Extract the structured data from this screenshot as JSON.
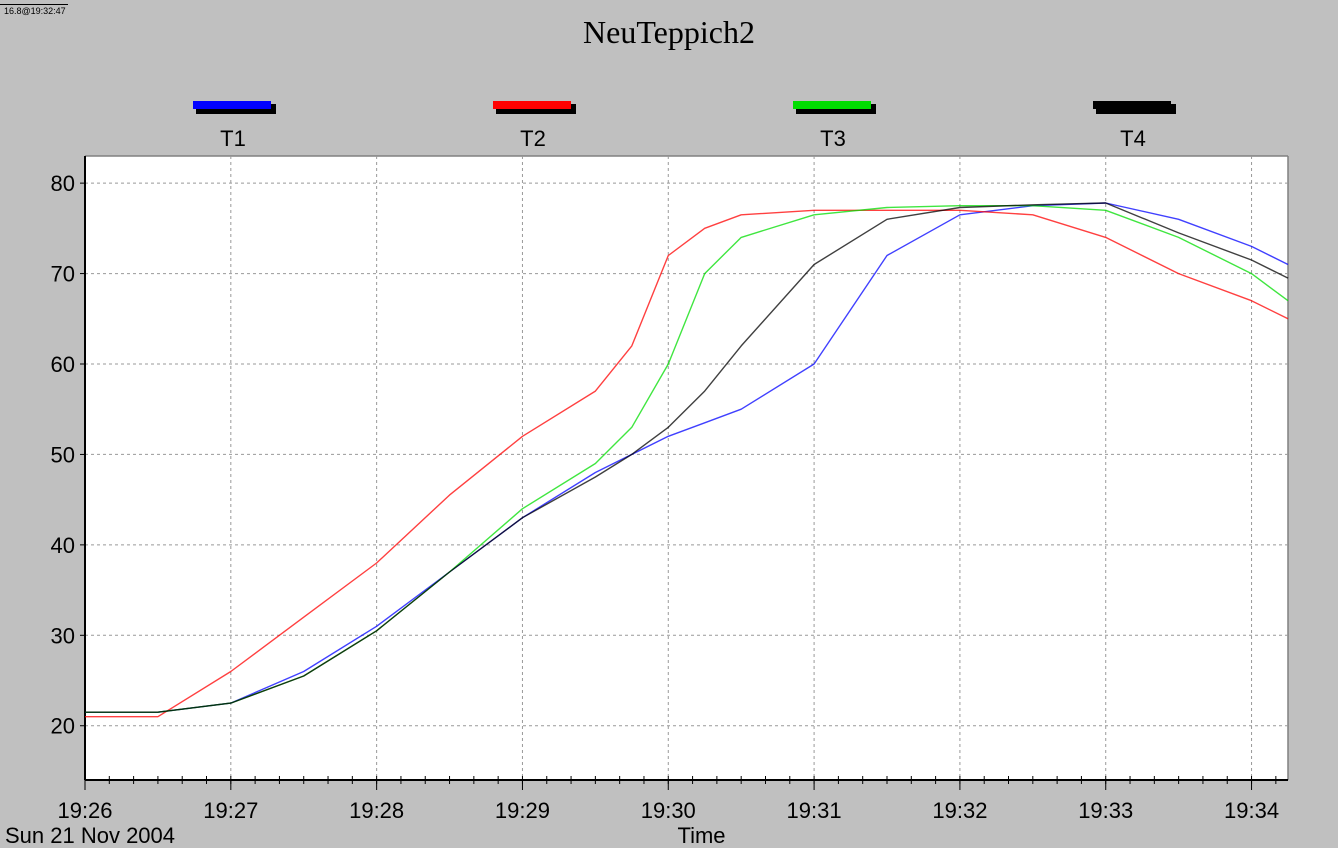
{
  "corner_tag": "16.8@19:32:47",
  "chart_data": {
    "type": "line",
    "title": "NeuTeppich2",
    "xlabel": "Time",
    "date_label": "Sun 21 Nov 2004",
    "ylabel": "",
    "x_unit": "minutes",
    "xlim": [
      "19:26",
      "19:34:15"
    ],
    "ylim": [
      14,
      83
    ],
    "yticks": [
      20,
      30,
      40,
      50,
      60,
      70,
      80
    ],
    "xticks": [
      "19:26",
      "19:27",
      "19:28",
      "19:29",
      "19:30",
      "19:31",
      "19:32",
      "19:33",
      "19:34"
    ],
    "grid": true,
    "legend_position": "top",
    "x": [
      "19:26",
      "19:26:30",
      "19:27",
      "19:27:30",
      "19:28",
      "19:28:30",
      "19:29",
      "19:29:30",
      "19:29:45",
      "19:30",
      "19:30:15",
      "19:30:30",
      "19:31",
      "19:31:30",
      "19:32",
      "19:32:30",
      "19:33",
      "19:33:30",
      "19:34",
      "19:34:15"
    ],
    "series": [
      {
        "name": "T1",
        "color": "#0000ff",
        "values": [
          21.5,
          21.5,
          22.5,
          26,
          31,
          37,
          43,
          48,
          50,
          52,
          53.5,
          55,
          60,
          72,
          76.5,
          77.5,
          77.8,
          76,
          73,
          71
        ]
      },
      {
        "name": "T2",
        "color": "#ff0000",
        "values": [
          21,
          21,
          26,
          32,
          38,
          45.5,
          52,
          57,
          62,
          72,
          75,
          76.5,
          77,
          77,
          77,
          76.5,
          74,
          70,
          67,
          65
        ]
      },
      {
        "name": "T3",
        "color": "#00dd00",
        "values": [
          21.5,
          21.5,
          22.5,
          25.5,
          30.5,
          37,
          44,
          49,
          53,
          60,
          70,
          74,
          76.5,
          77.3,
          77.5,
          77.5,
          77,
          74,
          70,
          67
        ]
      },
      {
        "name": "T4",
        "color": "#000000",
        "values": [
          21.5,
          21.5,
          22.5,
          25.5,
          30.5,
          37,
          43,
          47.5,
          50,
          53,
          57,
          62,
          71,
          76,
          77.3,
          77.6,
          77.8,
          74.5,
          71.5,
          69.5
        ]
      }
    ]
  }
}
